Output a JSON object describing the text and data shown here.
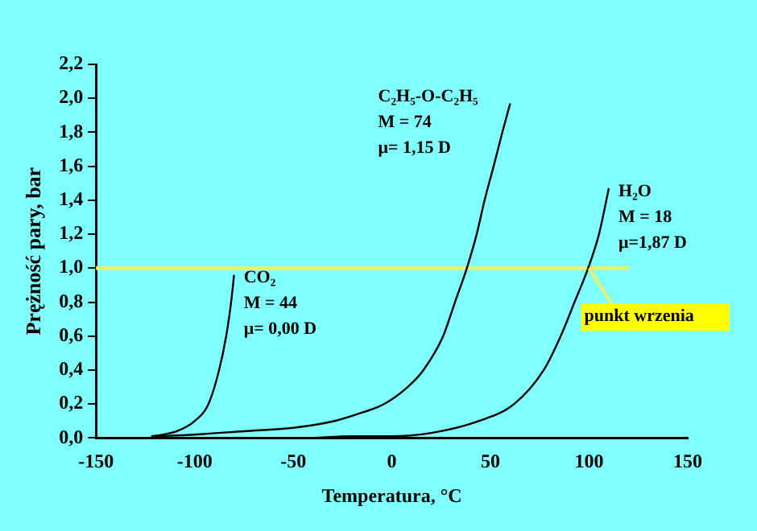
{
  "chart_data": {
    "type": "line",
    "xlabel": "Temperatura, °C",
    "ylabel": "Prężność pary, bar",
    "xlim": [
      -150,
      150
    ],
    "xticks": [
      -150,
      -100,
      -50,
      0,
      50,
      100,
      150
    ],
    "ylim": [
      0,
      2.2
    ],
    "yticks": [
      {
        "value": 0,
        "label": "0,0"
      },
      {
        "value": 0.2,
        "label": "0,2"
      },
      {
        "value": 0.4,
        "label": "0,4"
      },
      {
        "value": 0.6,
        "label": "0,6"
      },
      {
        "value": 0.8,
        "label": "0,8"
      },
      {
        "value": 1,
        "label": "1,0"
      },
      {
        "value": 1.2,
        "label": "1,2"
      },
      {
        "value": 1.4,
        "label": "1,4"
      },
      {
        "value": 1.6,
        "label": "1,6"
      },
      {
        "value": 1.8,
        "label": "1,8"
      },
      {
        "value": 2,
        "label": "2,0"
      },
      {
        "value": 2.2,
        "label": "2,2"
      }
    ],
    "marker": "none",
    "line_style": "solid",
    "legend": false,
    "series": [
      {
        "name": "CO₂",
        "color": "#000000",
        "x": [
          -122,
          -116,
          -109,
          -100,
          -93,
          -87.6,
          -84,
          -81.5,
          -80
        ],
        "values": [
          0.01,
          0.02,
          0.04,
          0.1,
          0.2,
          0.4,
          0.6,
          0.8,
          0.96
        ]
      },
      {
        "name": "C₂H₅-O-C₂H₅",
        "color": "#000000",
        "x": [
          -120,
          -100,
          -75,
          -50,
          -29,
          -15,
          -4,
          8,
          16,
          26,
          32,
          38,
          43,
          47,
          51.6,
          56,
          60
        ],
        "values": [
          0.01,
          0.02,
          0.04,
          0.06,
          0.1,
          0.15,
          0.2,
          0.3,
          0.4,
          0.6,
          0.8,
          1,
          1.2,
          1.4,
          1.6,
          1.8,
          1.97
        ]
      },
      {
        "name": "H₂O",
        "color": "#000000",
        "x": [
          -40,
          -20,
          0,
          20,
          44,
          62,
          77,
          85.6,
          92.6,
          99.5,
          105,
          110
        ],
        "values": [
          0,
          0.01,
          0.01,
          0.03,
          0.1,
          0.2,
          0.4,
          0.6,
          0.8,
          1,
          1.2,
          1.47
        ]
      }
    ],
    "ref_lines": [
      {
        "axis": "y",
        "value": 1,
        "color": "#e8f070"
      }
    ],
    "annotations": [
      "M = 44",
      "μ= 0,00 D",
      "M = 74",
      "μ= 1,15 D",
      "M = 18",
      "μ=1,87 D",
      {
        "text": "punkt wrzenia",
        "x": 100,
        "y": 1
      }
    ]
  }
}
